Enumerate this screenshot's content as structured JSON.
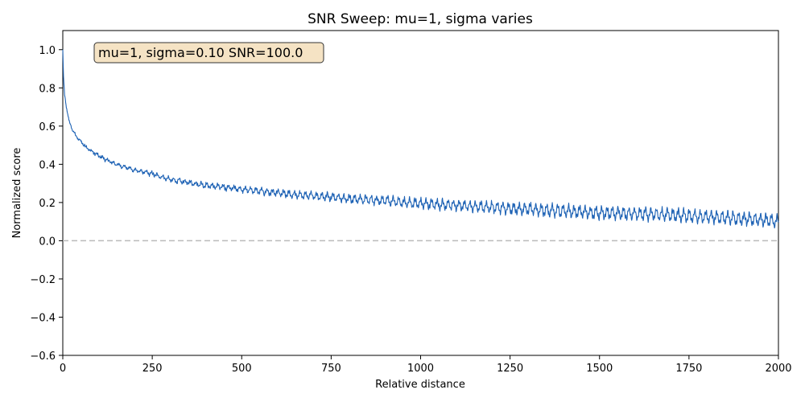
{
  "chart_data": {
    "type": "line",
    "title": "SNR Sweep:   mu=1, sigma varies",
    "xlabel": "Relative distance",
    "ylabel": "Normalized score",
    "xlim": [
      0,
      2000
    ],
    "ylim": [
      -0.6,
      1.1
    ],
    "xticks": [
      0,
      250,
      500,
      750,
      1000,
      1250,
      1500,
      1750,
      2000
    ],
    "xtick_labels": [
      "0",
      "250",
      "500",
      "750",
      "1000",
      "1250",
      "1500",
      "1750",
      "2000"
    ],
    "yticks": [
      -0.6,
      -0.4,
      -0.2,
      0.0,
      0.2,
      0.4,
      0.6,
      0.8,
      1.0
    ],
    "ytick_labels": [
      "−0.6",
      "−0.4",
      "−0.2",
      "0.0",
      "0.2",
      "0.4",
      "0.6",
      "0.8",
      "1.0"
    ],
    "grid": false,
    "reference_line": {
      "y": 0.0,
      "style": "dashed",
      "color": "#bbbbbb"
    },
    "annotation": {
      "text": "mu=1, sigma=0.10   SNR=100.0",
      "position": "top-left",
      "background": "#f5e3c4"
    },
    "series": [
      {
        "color": "#1f63b5",
        "x": [
          0,
          2,
          5,
          10,
          15,
          20,
          30,
          40,
          50,
          60,
          75,
          100,
          125,
          150,
          175,
          200,
          225,
          250,
          275,
          300,
          350,
          400,
          450,
          500,
          550,
          600,
          650,
          700,
          750,
          800,
          850,
          900,
          950,
          1000,
          1050,
          1100,
          1150,
          1200,
          1250,
          1300,
          1350,
          1400,
          1450,
          1500,
          1550,
          1600,
          1650,
          1700,
          1750,
          1800,
          1850,
          1900,
          1950,
          2000
        ],
        "y": [
          1.0,
          0.86,
          0.76,
          0.7,
          0.65,
          0.61,
          0.57,
          0.54,
          0.52,
          0.5,
          0.475,
          0.445,
          0.42,
          0.4,
          0.385,
          0.37,
          0.36,
          0.35,
          0.335,
          0.32,
          0.305,
          0.29,
          0.28,
          0.27,
          0.26,
          0.25,
          0.24,
          0.235,
          0.23,
          0.22,
          0.215,
          0.21,
          0.2,
          0.195,
          0.19,
          0.185,
          0.18,
          0.175,
          0.17,
          0.165,
          0.16,
          0.155,
          0.15,
          0.145,
          0.145,
          0.14,
          0.14,
          0.135,
          0.13,
          0.125,
          0.12,
          0.115,
          0.11,
          0.1
        ]
      }
    ]
  }
}
